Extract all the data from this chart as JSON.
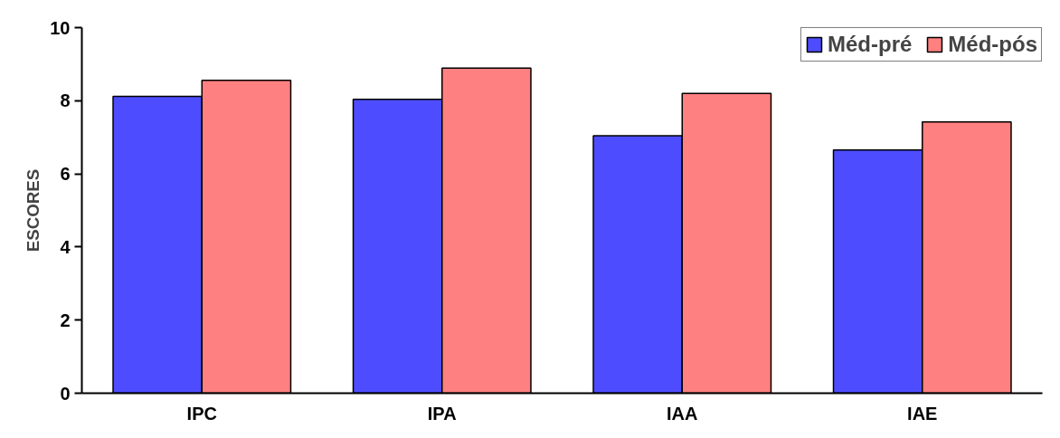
{
  "chart_data": {
    "type": "bar",
    "ylabel": "ESCORES",
    "categories": [
      "IPC",
      "IPA",
      "IAA",
      "IAE"
    ],
    "series": [
      {
        "name": "Méd-pré",
        "color": "#4d4dff",
        "values": [
          8.12,
          8.04,
          7.04,
          6.65
        ]
      },
      {
        "name": "Méd-pós",
        "color": "#ff8080",
        "values": [
          8.56,
          8.89,
          8.2,
          7.42
        ]
      }
    ],
    "ylim": [
      0,
      10
    ],
    "yticks": [
      0,
      2,
      4,
      6,
      8,
      10
    ],
    "grid": false,
    "legend": "top right"
  }
}
